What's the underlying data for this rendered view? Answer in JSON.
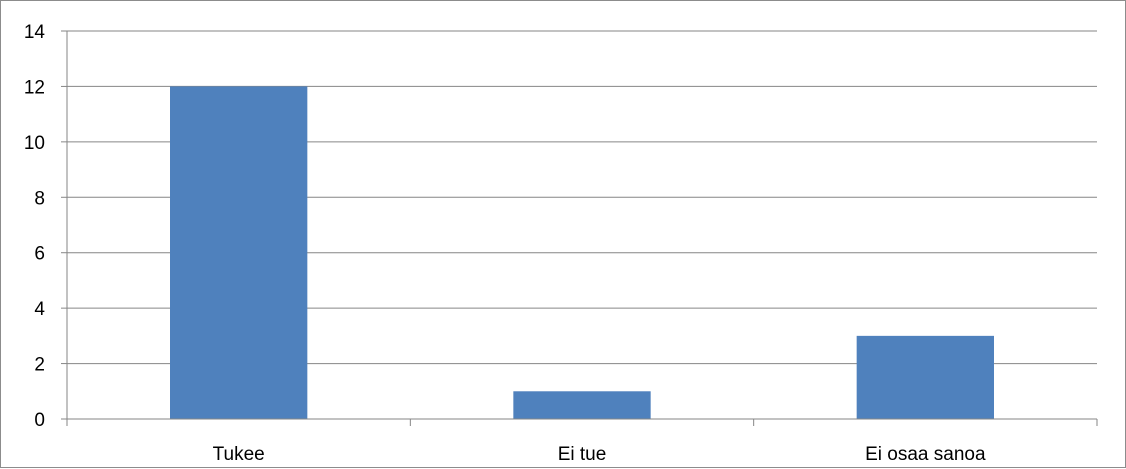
{
  "chart_data": {
    "type": "bar",
    "categories": [
      "Tukee",
      "Ei tue",
      "Ei osaa sanoa"
    ],
    "values": [
      12,
      1,
      3
    ],
    "title": "",
    "xlabel": "",
    "ylabel": "",
    "ylim": [
      0,
      14
    ],
    "yticks": [
      0,
      2,
      4,
      6,
      8,
      10,
      12,
      14
    ],
    "grid": true,
    "legend": "none",
    "colors": {
      "bar": "#4F81BD",
      "grid": "#868686",
      "axis": "#868686"
    }
  }
}
